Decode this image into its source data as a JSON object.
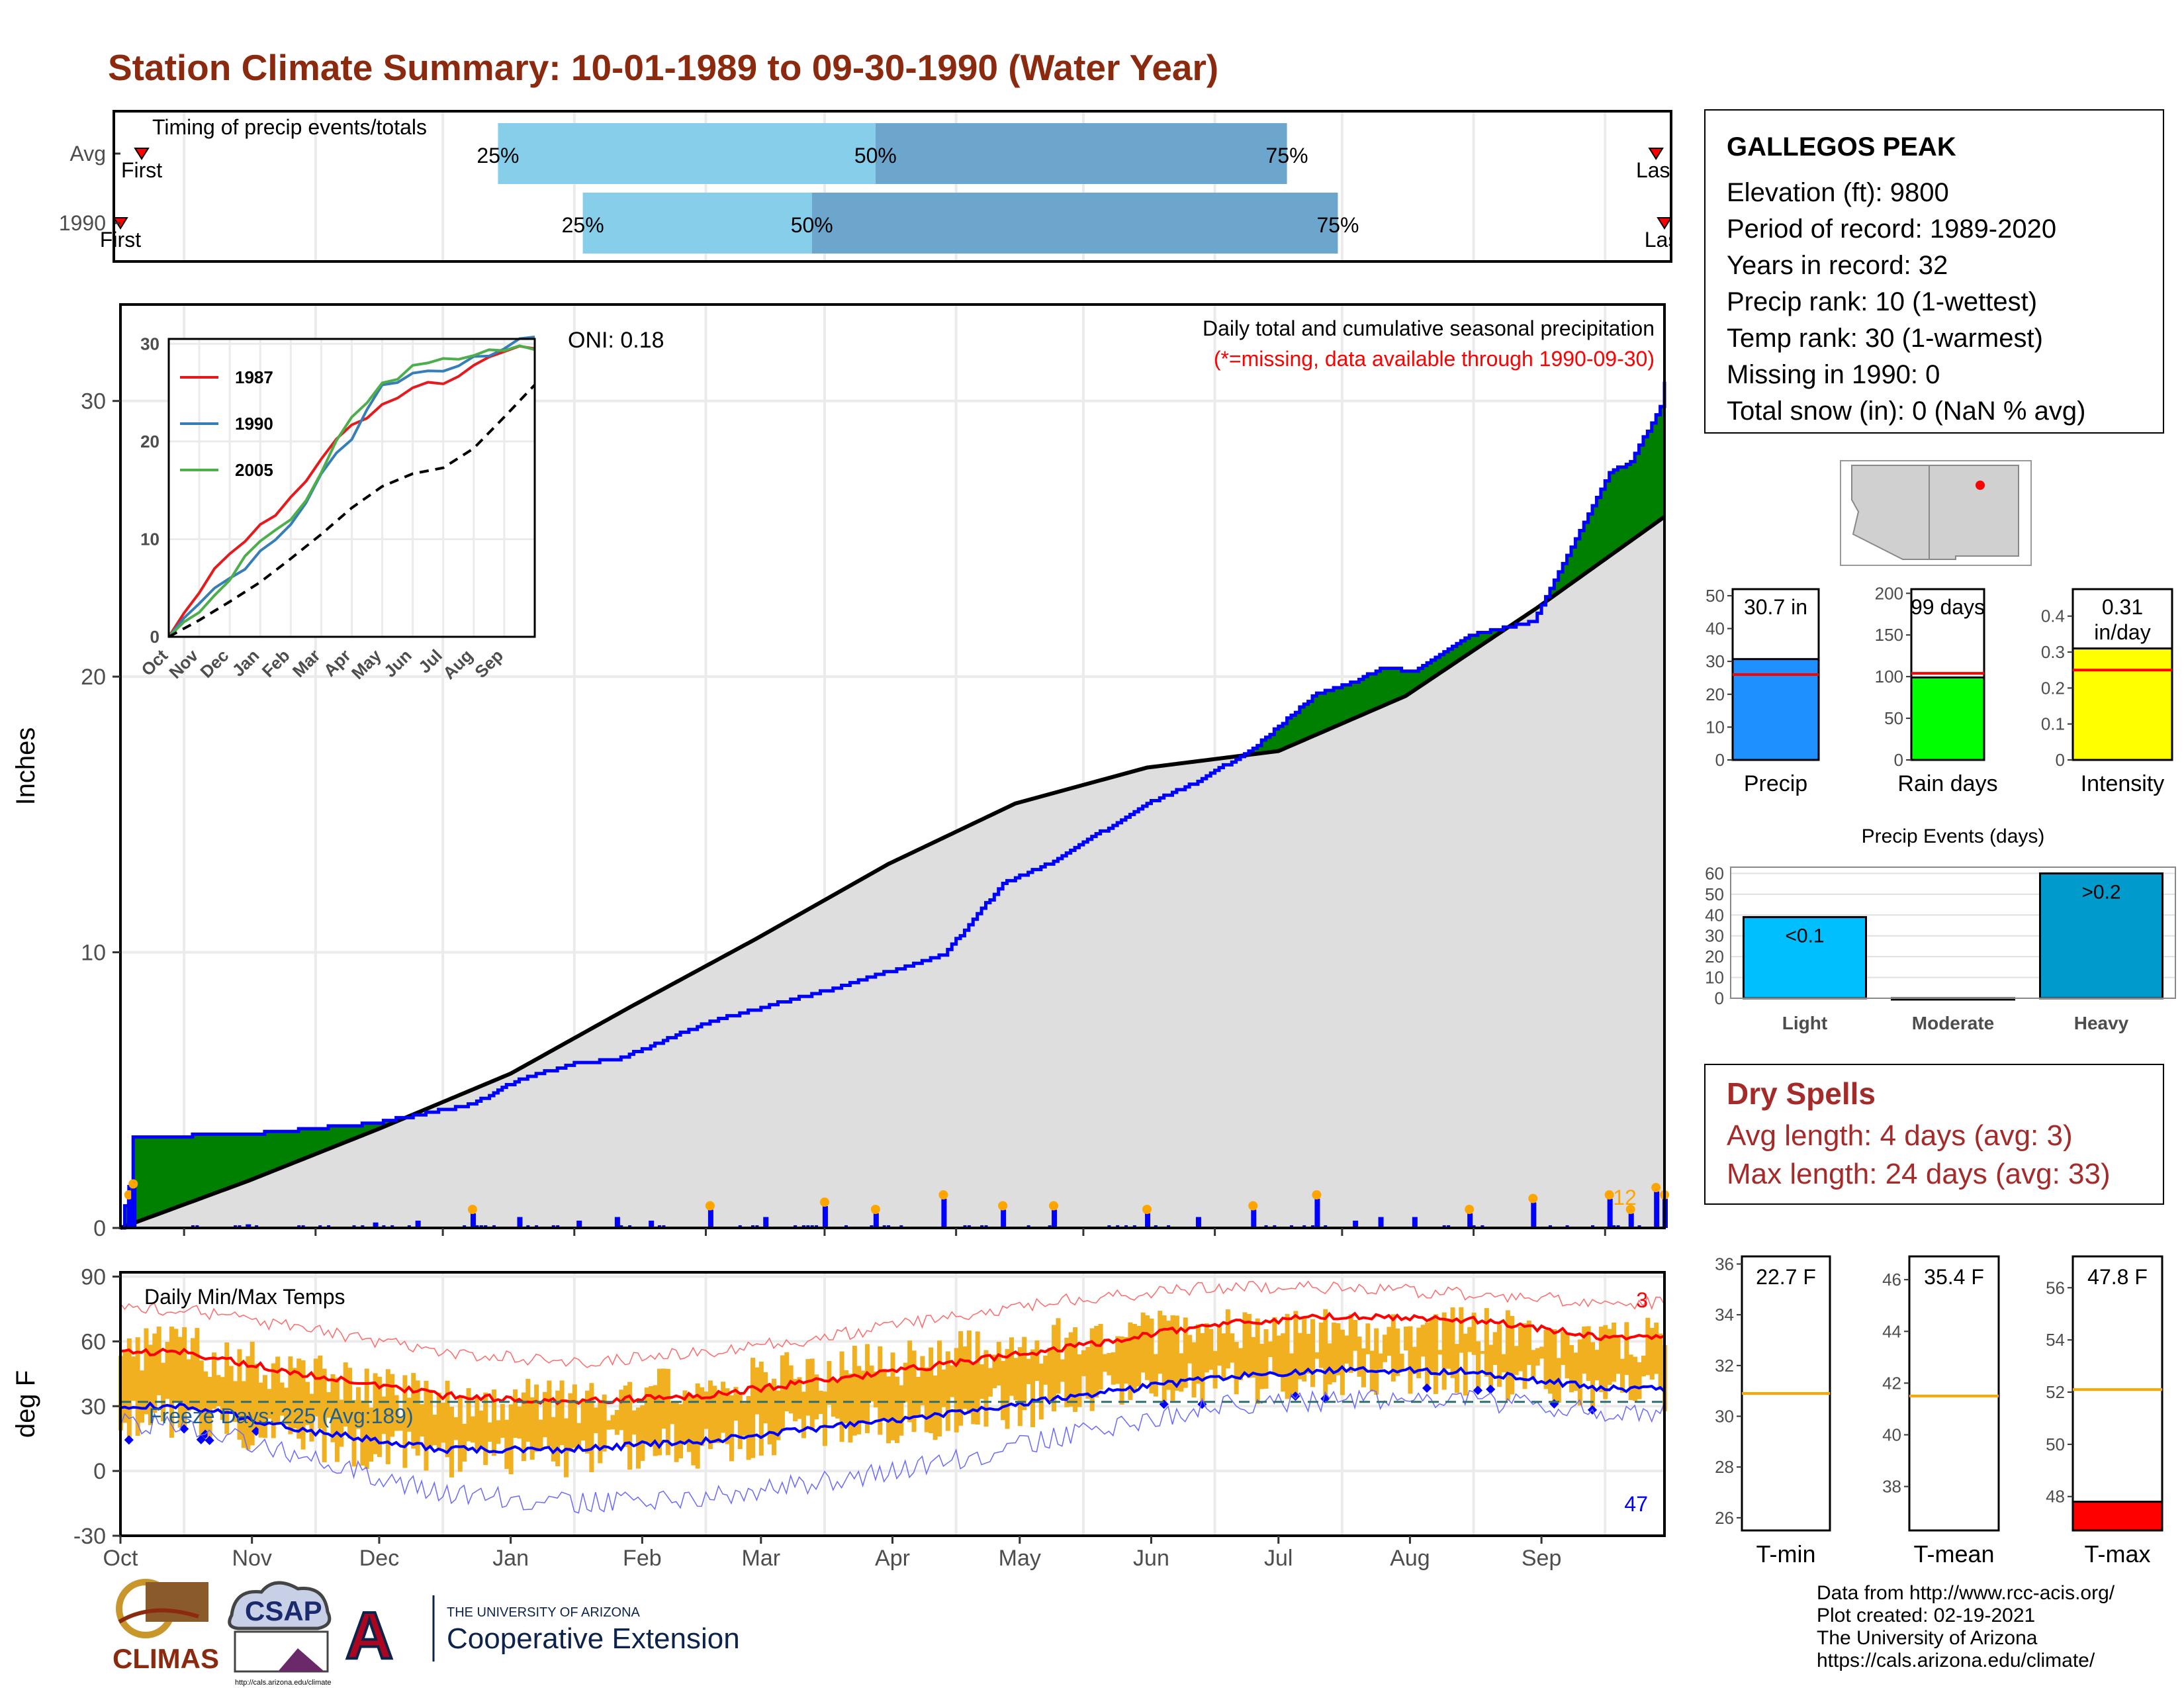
{
  "title": "Station Climate Summary: 10-01-1989 to 09-30-1990 (Water Year)",
  "station": {
    "name": "GALLEGOS PEAK",
    "lines": [
      "Elevation (ft): 9800",
      "Period of record: 1989-2020",
      "Years in record: 32",
      "Precip rank: 10 (1-wettest)",
      "Temp rank: 30 (1-warmest)",
      "Missing in 1990: 0",
      "Total snow (in): 0 (NaN % avg)"
    ]
  },
  "dry_spells": {
    "title": "Dry Spells",
    "avg": "Avg length: 4 days (avg: 3)",
    "max": "Max length: 24 days (avg: 33)"
  },
  "credits": [
    "Data from http://www.rcc-acis.org/",
    "Plot created: 02-19-2021",
    "The University of Arizona",
    "https://cals.arizona.edu/climate/"
  ],
  "logos": {
    "climas": "CLIMAS",
    "csap": "CSAP",
    "csap_url": "http://cals.arizona.edu/climate",
    "ua_small": "THE UNIVERSITY OF ARIZONA",
    "ua_big": "Cooperative Extension",
    "ua_letter": "A"
  },
  "month_labels": [
    "Oct",
    "Nov",
    "Dec",
    "Jan",
    "Feb",
    "Mar",
    "Apr",
    "May",
    "Jun",
    "Jul",
    "Aug",
    "Sep"
  ],
  "colors": {
    "precip_fill": "#008000",
    "precip_line": "#0000FF",
    "avg_fill": "#DEDEDE",
    "temp_bar": "#F0B020",
    "tmax": "#FF0000",
    "tmin": "#0000FF",
    "q_light": "#87CEEB",
    "q_dark": "#6CA6CD"
  },
  "chart_data": [
    {
      "id": "timing",
      "type": "bar",
      "title": "Timing of precip events/totals",
      "rows": [
        {
          "label": "Avg",
          "first_label": "First",
          "last_label": "Last",
          "first_day": 5,
          "q25_day": 89,
          "q50_day": 178,
          "q75_day": 275,
          "last_day": 362
        },
        {
          "label": "1990",
          "first_label": "First",
          "last_label": "Last",
          "first_day": 0,
          "q25_day": 109,
          "q50_day": 163,
          "q75_day": 287,
          "last_day": 364
        }
      ],
      "quartile_labels": [
        "25%",
        "50%",
        "75%"
      ]
    },
    {
      "id": "cumulative_precip",
      "type": "area",
      "title": "Daily total and cumulative seasonal precipitation",
      "subtitle": "(*=missing, data available through 1990-09-30)",
      "ylabel": "Inches",
      "ylim": [
        0,
        33.5
      ],
      "yticks": [
        0,
        10,
        20,
        30
      ],
      "oni": "ONI: 0.18",
      "corner_count": "12",
      "series": [
        {
          "name": "1990",
          "x_day": [
            0,
            2,
            3,
            30,
            60,
            83,
            94,
            108,
            117,
            139,
            166,
            194,
            208,
            220,
            242,
            254,
            267,
            282,
            291,
            297,
            305,
            318,
            333,
            351,
            356,
            363,
            364
          ],
          "y": [
            0,
            1.5,
            3.3,
            3.4,
            3.8,
            4.5,
            5.4,
            6.0,
            6.1,
            7.5,
            8.6,
            9.9,
            12.5,
            13.3,
            15.4,
            16.2,
            17.4,
            19.4,
            19.8,
            20.3,
            20.2,
            21.5,
            22.0,
            27.4,
            27.8,
            29.8,
            30.7
          ]
        },
        {
          "name": "Avg",
          "x_day": [
            0,
            30,
            61,
            92,
            120,
            150,
            181,
            211,
            242,
            273,
            303,
            334,
            364
          ],
          "y": [
            0,
            1.7,
            3.6,
            5.6,
            8.0,
            10.5,
            13.2,
            15.4,
            16.7,
            17.3,
            19.3,
            22.5,
            25.8
          ]
        }
      ],
      "daily_events": [
        {
          "day": 2,
          "in": 0.8
        },
        {
          "day": 3,
          "in": 1.1
        },
        {
          "day": 30,
          "in": 0.1
        },
        {
          "day": 60,
          "in": 0.15
        },
        {
          "day": 70,
          "in": 0.2
        },
        {
          "day": 83,
          "in": 0.4
        },
        {
          "day": 94,
          "in": 0.3
        },
        {
          "day": 108,
          "in": 0.2
        },
        {
          "day": 117,
          "in": 0.3
        },
        {
          "day": 125,
          "in": 0.2
        },
        {
          "day": 139,
          "in": 0.5
        },
        {
          "day": 152,
          "in": 0.3
        },
        {
          "day": 166,
          "in": 0.6
        },
        {
          "day": 178,
          "in": 0.4
        },
        {
          "day": 194,
          "in": 0.8
        },
        {
          "day": 208,
          "in": 0.5
        },
        {
          "day": 220,
          "in": 0.5
        },
        {
          "day": 242,
          "in": 0.4
        },
        {
          "day": 254,
          "in": 0.3
        },
        {
          "day": 267,
          "in": 0.5
        },
        {
          "day": 282,
          "in": 0.8
        },
        {
          "day": 291,
          "in": 0.2
        },
        {
          "day": 297,
          "in": 0.3
        },
        {
          "day": 305,
          "in": 0.3
        },
        {
          "day": 318,
          "in": 0.4
        },
        {
          "day": 333,
          "in": 0.7
        },
        {
          "day": 351,
          "in": 0.8
        },
        {
          "day": 356,
          "in": 0.4
        },
        {
          "day": 362,
          "in": 1.0
        },
        {
          "day": 364,
          "in": 0.8
        }
      ]
    },
    {
      "id": "inset_cumulative",
      "type": "line",
      "x_ticks": [
        "Oct",
        "Nov",
        "Dec",
        "Jan",
        "Feb",
        "Mar",
        "Apr",
        "May",
        "Jun",
        "Jul",
        "Aug",
        "Sep"
      ],
      "yticks": [
        0,
        10,
        20,
        30
      ],
      "ylim": [
        0,
        30.5
      ],
      "series": [
        {
          "name": "1987",
          "color": "#E41A1C",
          "y": [
            0,
            4.5,
            8.5,
            11.5,
            14.3,
            18.2,
            21.7,
            23.8,
            25.5,
            25.9,
            27.8,
            29.2,
            29.5
          ]
        },
        {
          "name": "1990",
          "color": "#377EB8",
          "y": [
            0,
            3.4,
            6.0,
            8.8,
            11.5,
            16.7,
            20.2,
            25.8,
            27.0,
            27.2,
            28.7,
            29.5,
            30.7
          ]
        },
        {
          "name": "2005",
          "color": "#4DAF4A",
          "y": [
            0,
            2.5,
            5.8,
            9.8,
            12.0,
            16.8,
            22.5,
            26.0,
            27.8,
            28.5,
            28.8,
            29.3,
            29.4
          ]
        },
        {
          "name": "Avg",
          "color": "#000000",
          "dashed": true,
          "y": [
            0,
            1.7,
            3.6,
            5.6,
            8.0,
            10.5,
            13.2,
            15.4,
            16.7,
            17.3,
            19.3,
            22.5,
            25.8
          ]
        }
      ]
    },
    {
      "id": "temps",
      "type": "line",
      "title": "Daily Min/Max Temps",
      "ylabel": "deg F",
      "ylim": [
        -30,
        92
      ],
      "yticks": [
        -30,
        0,
        30,
        60,
        90
      ],
      "freeze_label": "Freeze Days: 225 (Avg:189)",
      "count_top": "3",
      "count_bottom": "47",
      "months": [
        "Oct",
        "Nov",
        "Dec",
        "Jan",
        "Feb",
        "Mar",
        "Apr",
        "May",
        "Jun",
        "Jul",
        "Aug",
        "Sep"
      ],
      "monthly_avg_max": [
        55,
        44,
        35,
        32,
        35,
        42,
        50,
        58,
        68,
        72,
        70,
        62
      ],
      "monthly_avg_min": [
        30,
        18,
        10,
        10,
        14,
        20,
        27,
        35,
        43,
        47,
        46,
        38
      ],
      "monthly_record_max": [
        75,
        65,
        55,
        50,
        55,
        62,
        72,
        80,
        85,
        85,
        82,
        78
      ],
      "monthly_record_min": [
        22,
        5,
        -10,
        -15,
        -12,
        -5,
        5,
        18,
        30,
        33,
        33,
        27
      ],
      "monthly_obs_max": [
        57,
        44,
        32,
        32,
        40,
        46,
        54,
        62,
        65,
        65,
        65,
        60
      ],
      "monthly_obs_min": [
        25,
        15,
        6,
        7,
        12,
        20,
        26,
        34,
        40,
        45,
        45,
        38
      ],
      "freeze_line": 32
    },
    {
      "id": "precip_bars",
      "type": "bar",
      "categories": [
        "Precip",
        "Rain days",
        "Intensity"
      ],
      "values": [
        30.7,
        99,
        0.31
      ],
      "value_labels": [
        "30.7 in",
        "99 days",
        "0.31\nin/day"
      ],
      "averages": [
        26,
        104,
        0.25
      ],
      "ylims": [
        [
          0,
          52
        ],
        [
          0,
          205
        ],
        [
          0,
          0.475
        ]
      ],
      "yticks": [
        [
          0,
          10,
          20,
          30,
          40,
          50
        ],
        [
          0,
          50,
          100,
          150,
          200
        ],
        [
          0.0,
          0.1,
          0.2,
          0.3,
          0.4
        ]
      ],
      "colors": [
        "#1E90FF",
        "#00FF00",
        "#FFFF00"
      ]
    },
    {
      "id": "precip_events",
      "type": "bar",
      "title": "Precip Events (days)",
      "categories": [
        "Light",
        "Moderate",
        "Heavy"
      ],
      "values": [
        39,
        0,
        60
      ],
      "value_labels": [
        "<0.1",
        "",
        ">0.2"
      ],
      "ylim": [
        0,
        63
      ],
      "yticks": [
        0,
        10,
        20,
        30,
        40,
        50,
        60
      ],
      "colors": [
        "#00BFFF",
        "#00BFFF",
        "#009ACD"
      ]
    },
    {
      "id": "temp_bars",
      "type": "bar",
      "categories": [
        "T-min",
        "T-mean",
        "T-max"
      ],
      "values": [
        22.7,
        35.4,
        47.8
      ],
      "value_labels": [
        "22.7 F",
        "35.4 F",
        "47.8 F"
      ],
      "averages": [
        30.9,
        41.5,
        52.1
      ],
      "ylims": [
        [
          25.5,
          36.3
        ],
        [
          36.3,
          46.9
        ],
        [
          46.7,
          57.2
        ]
      ],
      "yticks": [
        [
          26,
          28,
          30,
          32,
          34,
          36
        ],
        [
          38,
          40,
          42,
          44,
          46
        ],
        [
          48,
          50,
          52,
          54,
          56
        ]
      ],
      "bar_color": "#FF0000"
    }
  ]
}
